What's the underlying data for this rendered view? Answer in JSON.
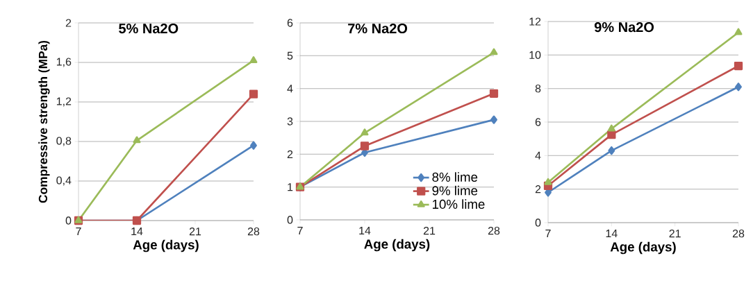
{
  "chart_data": [
    {
      "type": "line",
      "title": "5% Na2O",
      "xlabel": "Age (days)",
      "ylabel": "Compressive strength (MPa)",
      "x": [
        7,
        14,
        28
      ],
      "xlim": [
        7,
        28
      ],
      "xticks": [
        7,
        14,
        21,
        28
      ],
      "ylim": [
        0,
        2
      ],
      "yticks": [
        0,
        {
          "value": 0.4,
          "label": "0,4"
        },
        {
          "value": 0.8,
          "label": "0,8"
        },
        {
          "value": 1.2,
          "label": "1,2"
        },
        {
          "value": 1.6,
          "label": "1,6"
        },
        2
      ],
      "grid": "y",
      "legend": false,
      "series": [
        {
          "color": "#4f81bd",
          "marker": "diamond",
          "values": [
            0,
            0,
            0.76
          ]
        },
        {
          "color": "#c0504d",
          "marker": "square",
          "values": [
            0,
            0,
            1.28
          ]
        },
        {
          "color": "#9bbb59",
          "marker": "triangle",
          "values": [
            0,
            0.81,
            1.62
          ]
        }
      ]
    },
    {
      "type": "line",
      "title": "7% Na2O",
      "xlabel": "Age (days)",
      "x": [
        7,
        14,
        28
      ],
      "xlim": [
        7,
        28
      ],
      "xticks": [
        7,
        14,
        21,
        28
      ],
      "ylim": [
        0,
        6
      ],
      "yticks": [
        0,
        1,
        2,
        3,
        4,
        5,
        6
      ],
      "grid": "y",
      "legend": "bottom right",
      "series": [
        {
          "name": "8% lime",
          "color": "#4f81bd",
          "marker": "diamond",
          "values": [
            1.0,
            2.05,
            3.05
          ]
        },
        {
          "name": "9% lime",
          "color": "#c0504d",
          "marker": "square",
          "values": [
            1.0,
            2.25,
            3.85
          ]
        },
        {
          "name": "10% lime",
          "color": "#9bbb59",
          "marker": "triangle",
          "values": [
            1.0,
            2.65,
            5.1
          ]
        }
      ]
    },
    {
      "type": "line",
      "title": "9% Na2O",
      "xlabel": "Age (days)",
      "x": [
        7,
        14,
        28
      ],
      "xlim": [
        7,
        28
      ],
      "xticks": [
        7,
        14,
        21,
        28
      ],
      "ylim": [
        0,
        12
      ],
      "yticks": [
        0,
        2,
        4,
        6,
        8,
        10,
        12
      ],
      "grid": "y",
      "legend": false,
      "series": [
        {
          "color": "#4f81bd",
          "marker": "diamond",
          "values": [
            1.8,
            4.3,
            8.1
          ]
        },
        {
          "color": "#c0504d",
          "marker": "square",
          "values": [
            2.2,
            5.25,
            9.35
          ]
        },
        {
          "color": "#9bbb59",
          "marker": "triangle",
          "values": [
            2.4,
            5.6,
            11.35
          ]
        }
      ]
    }
  ]
}
